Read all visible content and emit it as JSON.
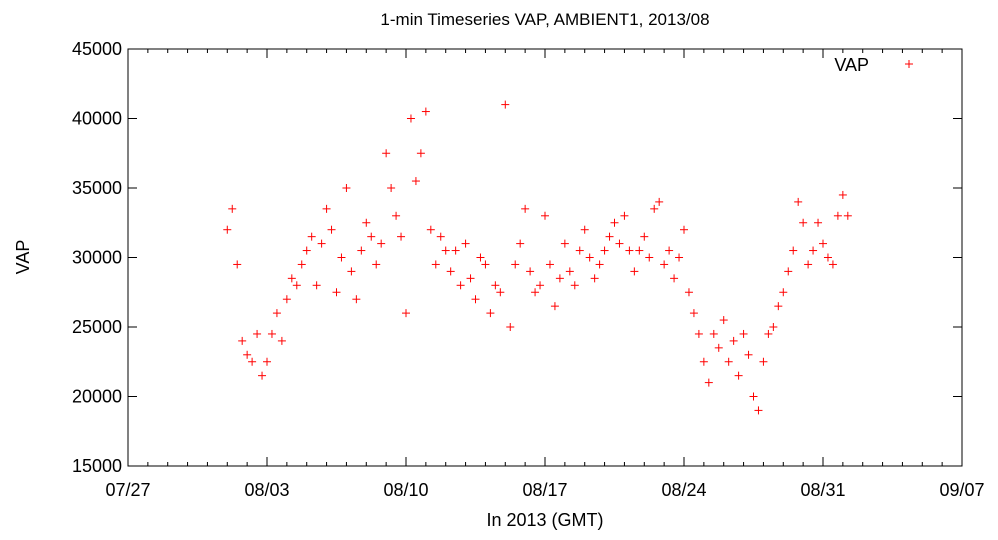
{
  "chart_data": {
    "type": "scatter",
    "title": "1-min Timeseries VAP, AMBIENT1, 2013/08",
    "xlabel": "In 2013 (GMT)",
    "ylabel": "VAP",
    "xlim": [
      "07/27",
      "09/07"
    ],
    "ylim": [
      15000,
      45000
    ],
    "xticks": [
      "07/27",
      "08/03",
      "08/10",
      "08/17",
      "08/24",
      "08/31",
      "09/07"
    ],
    "yticks": [
      15000,
      20000,
      25000,
      30000,
      35000,
      40000,
      45000
    ],
    "legend_position": "top-right",
    "marker": "plus",
    "colors": {
      "series": "#ff0000",
      "axis": "#000000"
    },
    "series": [
      {
        "name": "VAP",
        "points": [
          [
            "08/01 00:00",
            32000
          ],
          [
            "08/01 06:00",
            33500
          ],
          [
            "08/01 12:00",
            29500
          ],
          [
            "08/01 18:00",
            24000
          ],
          [
            "08/02 00:00",
            23000
          ],
          [
            "08/02 06:00",
            22500
          ],
          [
            "08/02 12:00",
            24500
          ],
          [
            "08/02 18:00",
            21500
          ],
          [
            "08/03 00:00",
            22500
          ],
          [
            "08/03 06:00",
            24500
          ],
          [
            "08/03 12:00",
            26000
          ],
          [
            "08/03 18:00",
            24000
          ],
          [
            "08/04 00:00",
            27000
          ],
          [
            "08/04 06:00",
            28500
          ],
          [
            "08/04 12:00",
            28000
          ],
          [
            "08/04 18:00",
            29500
          ],
          [
            "08/05 00:00",
            30500
          ],
          [
            "08/05 06:00",
            31500
          ],
          [
            "08/05 12:00",
            28000
          ],
          [
            "08/05 18:00",
            31000
          ],
          [
            "08/06 00:00",
            33500
          ],
          [
            "08/06 06:00",
            32000
          ],
          [
            "08/06 12:00",
            27500
          ],
          [
            "08/06 18:00",
            30000
          ],
          [
            "08/07 00:00",
            35000
          ],
          [
            "08/07 06:00",
            29000
          ],
          [
            "08/07 12:00",
            27000
          ],
          [
            "08/07 18:00",
            30500
          ],
          [
            "08/08 00:00",
            32500
          ],
          [
            "08/08 06:00",
            31500
          ],
          [
            "08/08 12:00",
            29500
          ],
          [
            "08/08 18:00",
            31000
          ],
          [
            "08/09 00:00",
            37500
          ],
          [
            "08/09 06:00",
            35000
          ],
          [
            "08/09 12:00",
            33000
          ],
          [
            "08/09 18:00",
            31500
          ],
          [
            "08/10 00:00",
            26000
          ],
          [
            "08/10 06:00",
            40000
          ],
          [
            "08/10 12:00",
            35500
          ],
          [
            "08/10 18:00",
            37500
          ],
          [
            "08/11 00:00",
            40500
          ],
          [
            "08/11 06:00",
            32000
          ],
          [
            "08/11 12:00",
            29500
          ],
          [
            "08/11 18:00",
            31500
          ],
          [
            "08/12 00:00",
            30500
          ],
          [
            "08/12 06:00",
            29000
          ],
          [
            "08/12 12:00",
            30500
          ],
          [
            "08/12 18:00",
            28000
          ],
          [
            "08/13 00:00",
            31000
          ],
          [
            "08/13 06:00",
            28500
          ],
          [
            "08/13 12:00",
            27000
          ],
          [
            "08/13 18:00",
            30000
          ],
          [
            "08/14 00:00",
            29500
          ],
          [
            "08/14 06:00",
            26000
          ],
          [
            "08/14 12:00",
            28000
          ],
          [
            "08/14 18:00",
            27500
          ],
          [
            "08/15 00:00",
            41000
          ],
          [
            "08/15 06:00",
            25000
          ],
          [
            "08/15 12:00",
            29500
          ],
          [
            "08/15 18:00",
            31000
          ],
          [
            "08/16 00:00",
            33500
          ],
          [
            "08/16 06:00",
            29000
          ],
          [
            "08/16 12:00",
            27500
          ],
          [
            "08/16 18:00",
            28000
          ],
          [
            "08/17 00:00",
            33000
          ],
          [
            "08/17 06:00",
            29500
          ],
          [
            "08/17 12:00",
            26500
          ],
          [
            "08/17 18:00",
            28500
          ],
          [
            "08/18 00:00",
            31000
          ],
          [
            "08/18 06:00",
            29000
          ],
          [
            "08/18 12:00",
            28000
          ],
          [
            "08/18 18:00",
            30500
          ],
          [
            "08/19 00:00",
            32000
          ],
          [
            "08/19 06:00",
            30000
          ],
          [
            "08/19 12:00",
            28500
          ],
          [
            "08/19 18:00",
            29500
          ],
          [
            "08/20 00:00",
            30500
          ],
          [
            "08/20 06:00",
            31500
          ],
          [
            "08/20 12:00",
            32500
          ],
          [
            "08/20 18:00",
            31000
          ],
          [
            "08/21 00:00",
            33000
          ],
          [
            "08/21 06:00",
            30500
          ],
          [
            "08/21 12:00",
            29000
          ],
          [
            "08/21 18:00",
            30500
          ],
          [
            "08/22 00:00",
            31500
          ],
          [
            "08/22 06:00",
            30000
          ],
          [
            "08/22 12:00",
            33500
          ],
          [
            "08/22 18:00",
            34000
          ],
          [
            "08/23 00:00",
            29500
          ],
          [
            "08/23 06:00",
            30500
          ],
          [
            "08/23 12:00",
            28500
          ],
          [
            "08/23 18:00",
            30000
          ],
          [
            "08/24 00:00",
            32000
          ],
          [
            "08/24 06:00",
            27500
          ],
          [
            "08/24 12:00",
            26000
          ],
          [
            "08/24 18:00",
            24500
          ],
          [
            "08/25 00:00",
            22500
          ],
          [
            "08/25 06:00",
            21000
          ],
          [
            "08/25 12:00",
            24500
          ],
          [
            "08/25 18:00",
            23500
          ],
          [
            "08/26 00:00",
            25500
          ],
          [
            "08/26 06:00",
            22500
          ],
          [
            "08/26 12:00",
            24000
          ],
          [
            "08/26 18:00",
            21500
          ],
          [
            "08/27 00:00",
            24500
          ],
          [
            "08/27 06:00",
            23000
          ],
          [
            "08/27 12:00",
            20000
          ],
          [
            "08/27 18:00",
            19000
          ],
          [
            "08/28 00:00",
            22500
          ],
          [
            "08/28 06:00",
            24500
          ],
          [
            "08/28 12:00",
            25000
          ],
          [
            "08/28 18:00",
            26500
          ],
          [
            "08/29 00:00",
            27500
          ],
          [
            "08/29 06:00",
            29000
          ],
          [
            "08/29 12:00",
            30500
          ],
          [
            "08/29 18:00",
            34000
          ],
          [
            "08/30 00:00",
            32500
          ],
          [
            "08/30 06:00",
            29500
          ],
          [
            "08/30 12:00",
            30500
          ],
          [
            "08/30 18:00",
            32500
          ],
          [
            "08/31 00:00",
            31000
          ],
          [
            "08/31 06:00",
            30000
          ],
          [
            "08/31 12:00",
            29500
          ],
          [
            "08/31 18:00",
            33000
          ],
          [
            "09/01 00:00",
            34500
          ],
          [
            "09/01 06:00",
            33000
          ]
        ]
      }
    ]
  }
}
